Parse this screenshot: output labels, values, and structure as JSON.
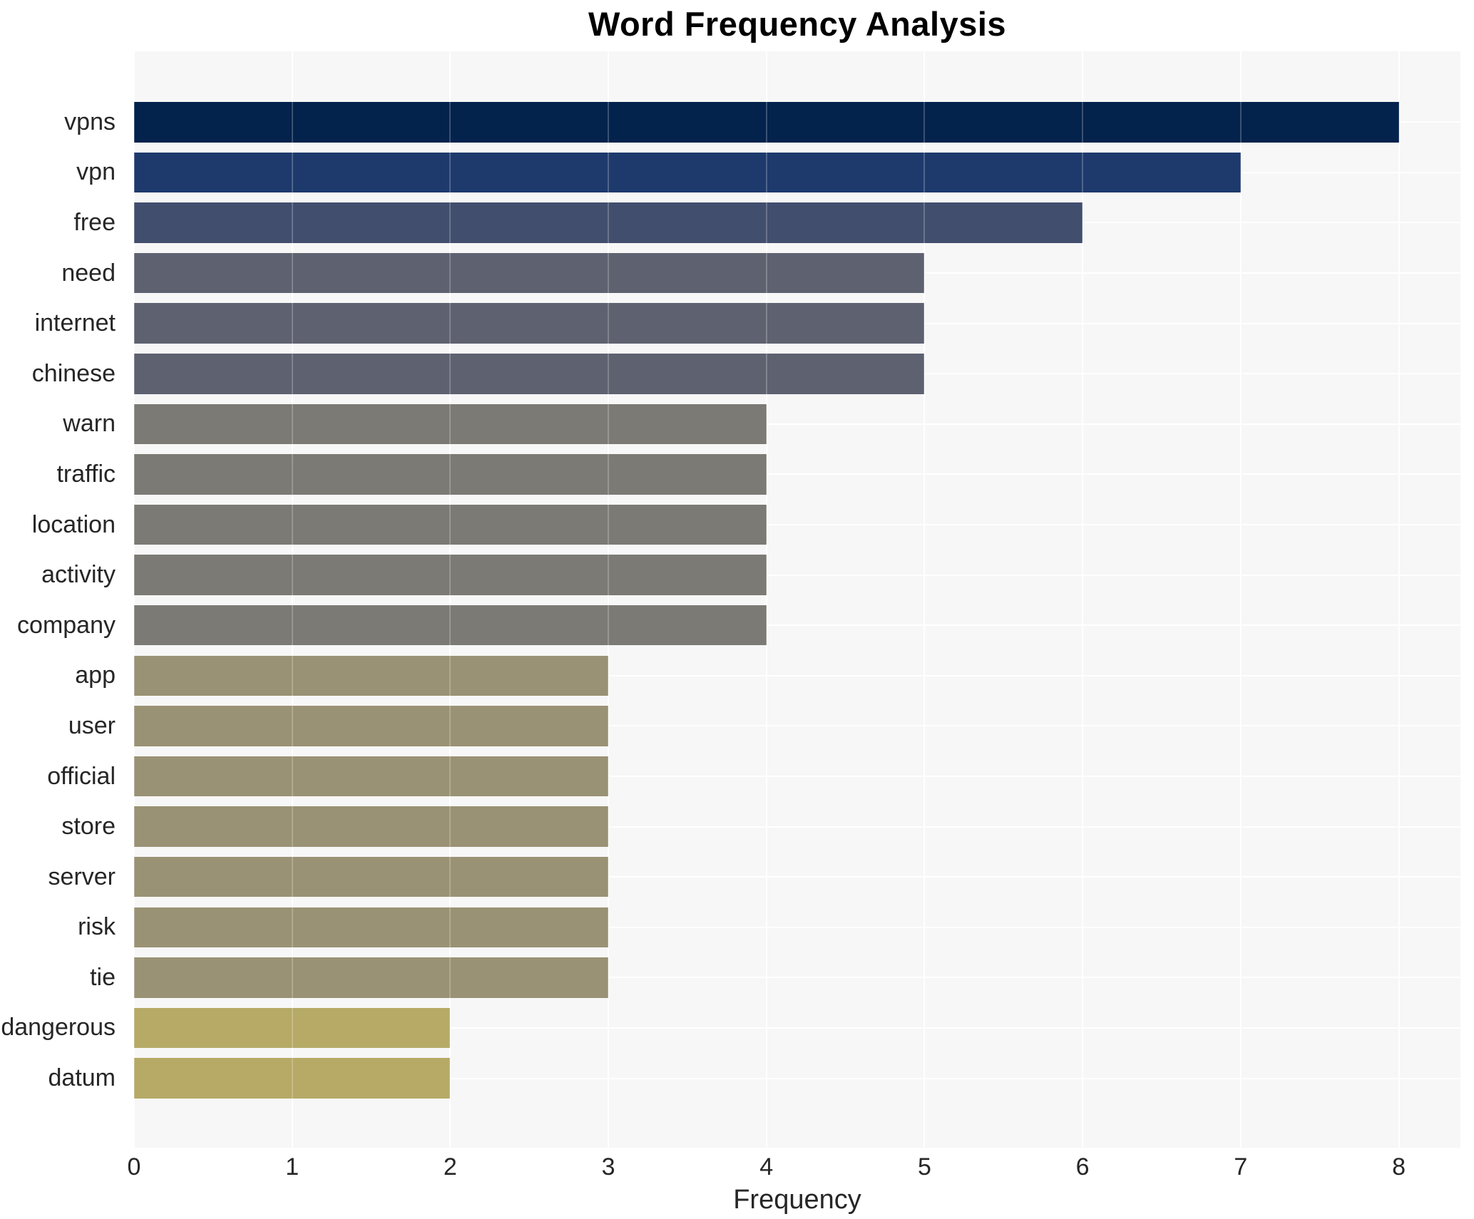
{
  "title": "Word Frequency Analysis",
  "xlabel": "Frequency",
  "chart_data": {
    "type": "bar",
    "orientation": "horizontal",
    "title": "Word Frequency Analysis",
    "xlabel": "Frequency",
    "ylabel": "",
    "categories": [
      "vpns",
      "vpn",
      "free",
      "need",
      "internet",
      "chinese",
      "warn",
      "traffic",
      "location",
      "activity",
      "company",
      "app",
      "user",
      "official",
      "store",
      "server",
      "risk",
      "tie",
      "dangerous",
      "datum"
    ],
    "values": [
      8,
      7,
      6,
      5,
      5,
      5,
      4,
      4,
      4,
      4,
      4,
      3,
      3,
      3,
      3,
      3,
      3,
      3,
      2,
      2
    ],
    "xticks": [
      0,
      1,
      2,
      3,
      4,
      5,
      6,
      7,
      8
    ],
    "xlim": [
      0,
      8.39
    ],
    "grid": true,
    "legend": false,
    "colors_by_value": {
      "8": "#03224c",
      "7": "#1e3a6d",
      "6": "#424e6e",
      "5": "#5e6170",
      "4": "#7b7a74",
      "3": "#9a9274",
      "2": "#b6aa66"
    },
    "plot_bg_color": "#f7f7f7",
    "grid_color": "#ffffff",
    "grid_overlay_color": "rgba(255,255,255,0.22)",
    "text_color": "#262626",
    "title_color": "#000000"
  }
}
